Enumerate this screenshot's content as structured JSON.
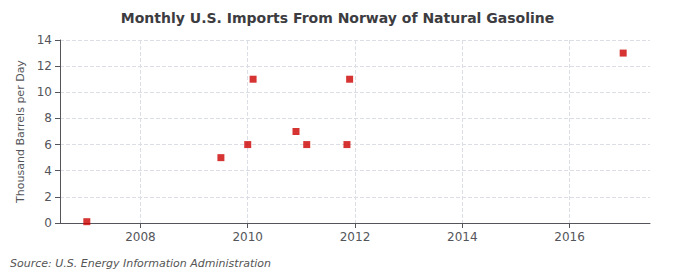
{
  "chart_data": {
    "type": "scatter",
    "title": "Monthly U.S. Imports From Norway of Natural Gasoline",
    "ylabel": "Thousand Barrels per Day",
    "annotations": [
      "Source: U.S. Energy Information Administration"
    ],
    "x": [
      2007.0,
      2009.5,
      2010.0,
      2010.1,
      2010.9,
      2011.1,
      2011.85,
      2011.9,
      2017.0
    ],
    "values": [
      0.1,
      5.0,
      6.0,
      11.0,
      7.0,
      6.0,
      6.0,
      11.0,
      13.0
    ],
    "color": "#cc0000",
    "marker": "square",
    "xlim": [
      2006.5,
      2017.5
    ],
    "xticks": [
      2008,
      2010,
      2012,
      2014,
      2016
    ],
    "ylim": [
      0,
      14
    ],
    "yticks": [
      0,
      2,
      4,
      6,
      8,
      10,
      12,
      14
    ],
    "grid": true
  }
}
